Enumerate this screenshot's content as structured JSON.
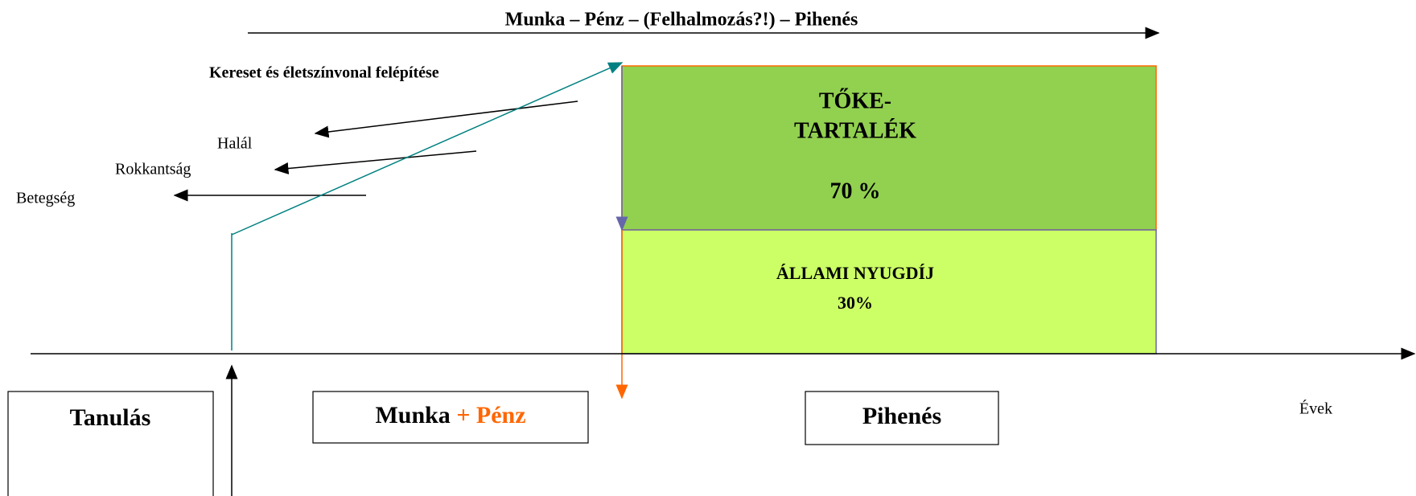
{
  "header": {
    "title": "Munka – Pénz – (Felhalmozás?!) – Pihenés"
  },
  "build_up": "Kereset és életszínvonal felépítése",
  "risks": [
    "Halál",
    "Rokkantság",
    "Betegség"
  ],
  "capital": {
    "lines": [
      "TŐKE-",
      "TARTALÉK"
    ],
    "share": "70 %"
  },
  "state": {
    "label": "ÁLLAMI NYUGDÍJ",
    "share": "30%"
  },
  "phases": {
    "study": "Tanulás",
    "work": {
      "a": "Munka",
      "b": "+ Pénz"
    },
    "rest": "Pihenés"
  },
  "axis_label": "Évek"
}
